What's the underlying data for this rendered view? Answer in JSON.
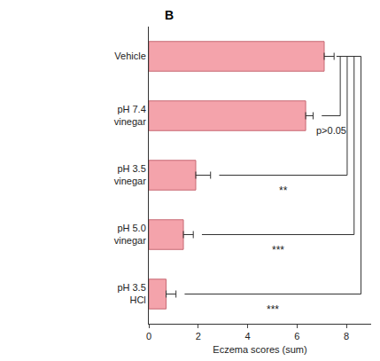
{
  "chart_data": {
    "type": "bar",
    "orientation": "horizontal",
    "panel": "B",
    "categories": [
      "Vehicle",
      "pH 7.4 vinegar",
      "pH 3.5 vinegar",
      "pH 5.0 vinegar",
      "pH 3.5 HCl"
    ],
    "values": [
      7.1,
      6.35,
      1.9,
      1.4,
      0.7
    ],
    "errors": [
      0.4,
      0.3,
      0.6,
      0.4,
      0.4
    ],
    "color": "#f4a3ab",
    "xlabel": "Eczema scores (sum)",
    "xlim": [
      0,
      9
    ],
    "xticks": [
      0,
      2,
      4,
      6,
      8
    ],
    "grid": false,
    "comparisons": [
      {
        "from": "Vehicle",
        "to": "pH 7.4 vinegar",
        "label": "p>0.05"
      },
      {
        "from": "Vehicle",
        "to": "pH 3.5 vinegar",
        "label": "**"
      },
      {
        "from": "Vehicle",
        "to": "pH 5.0 vinegar",
        "label": "***"
      },
      {
        "from": "Vehicle",
        "to": "pH 3.5 HCl",
        "label": "***"
      }
    ]
  }
}
